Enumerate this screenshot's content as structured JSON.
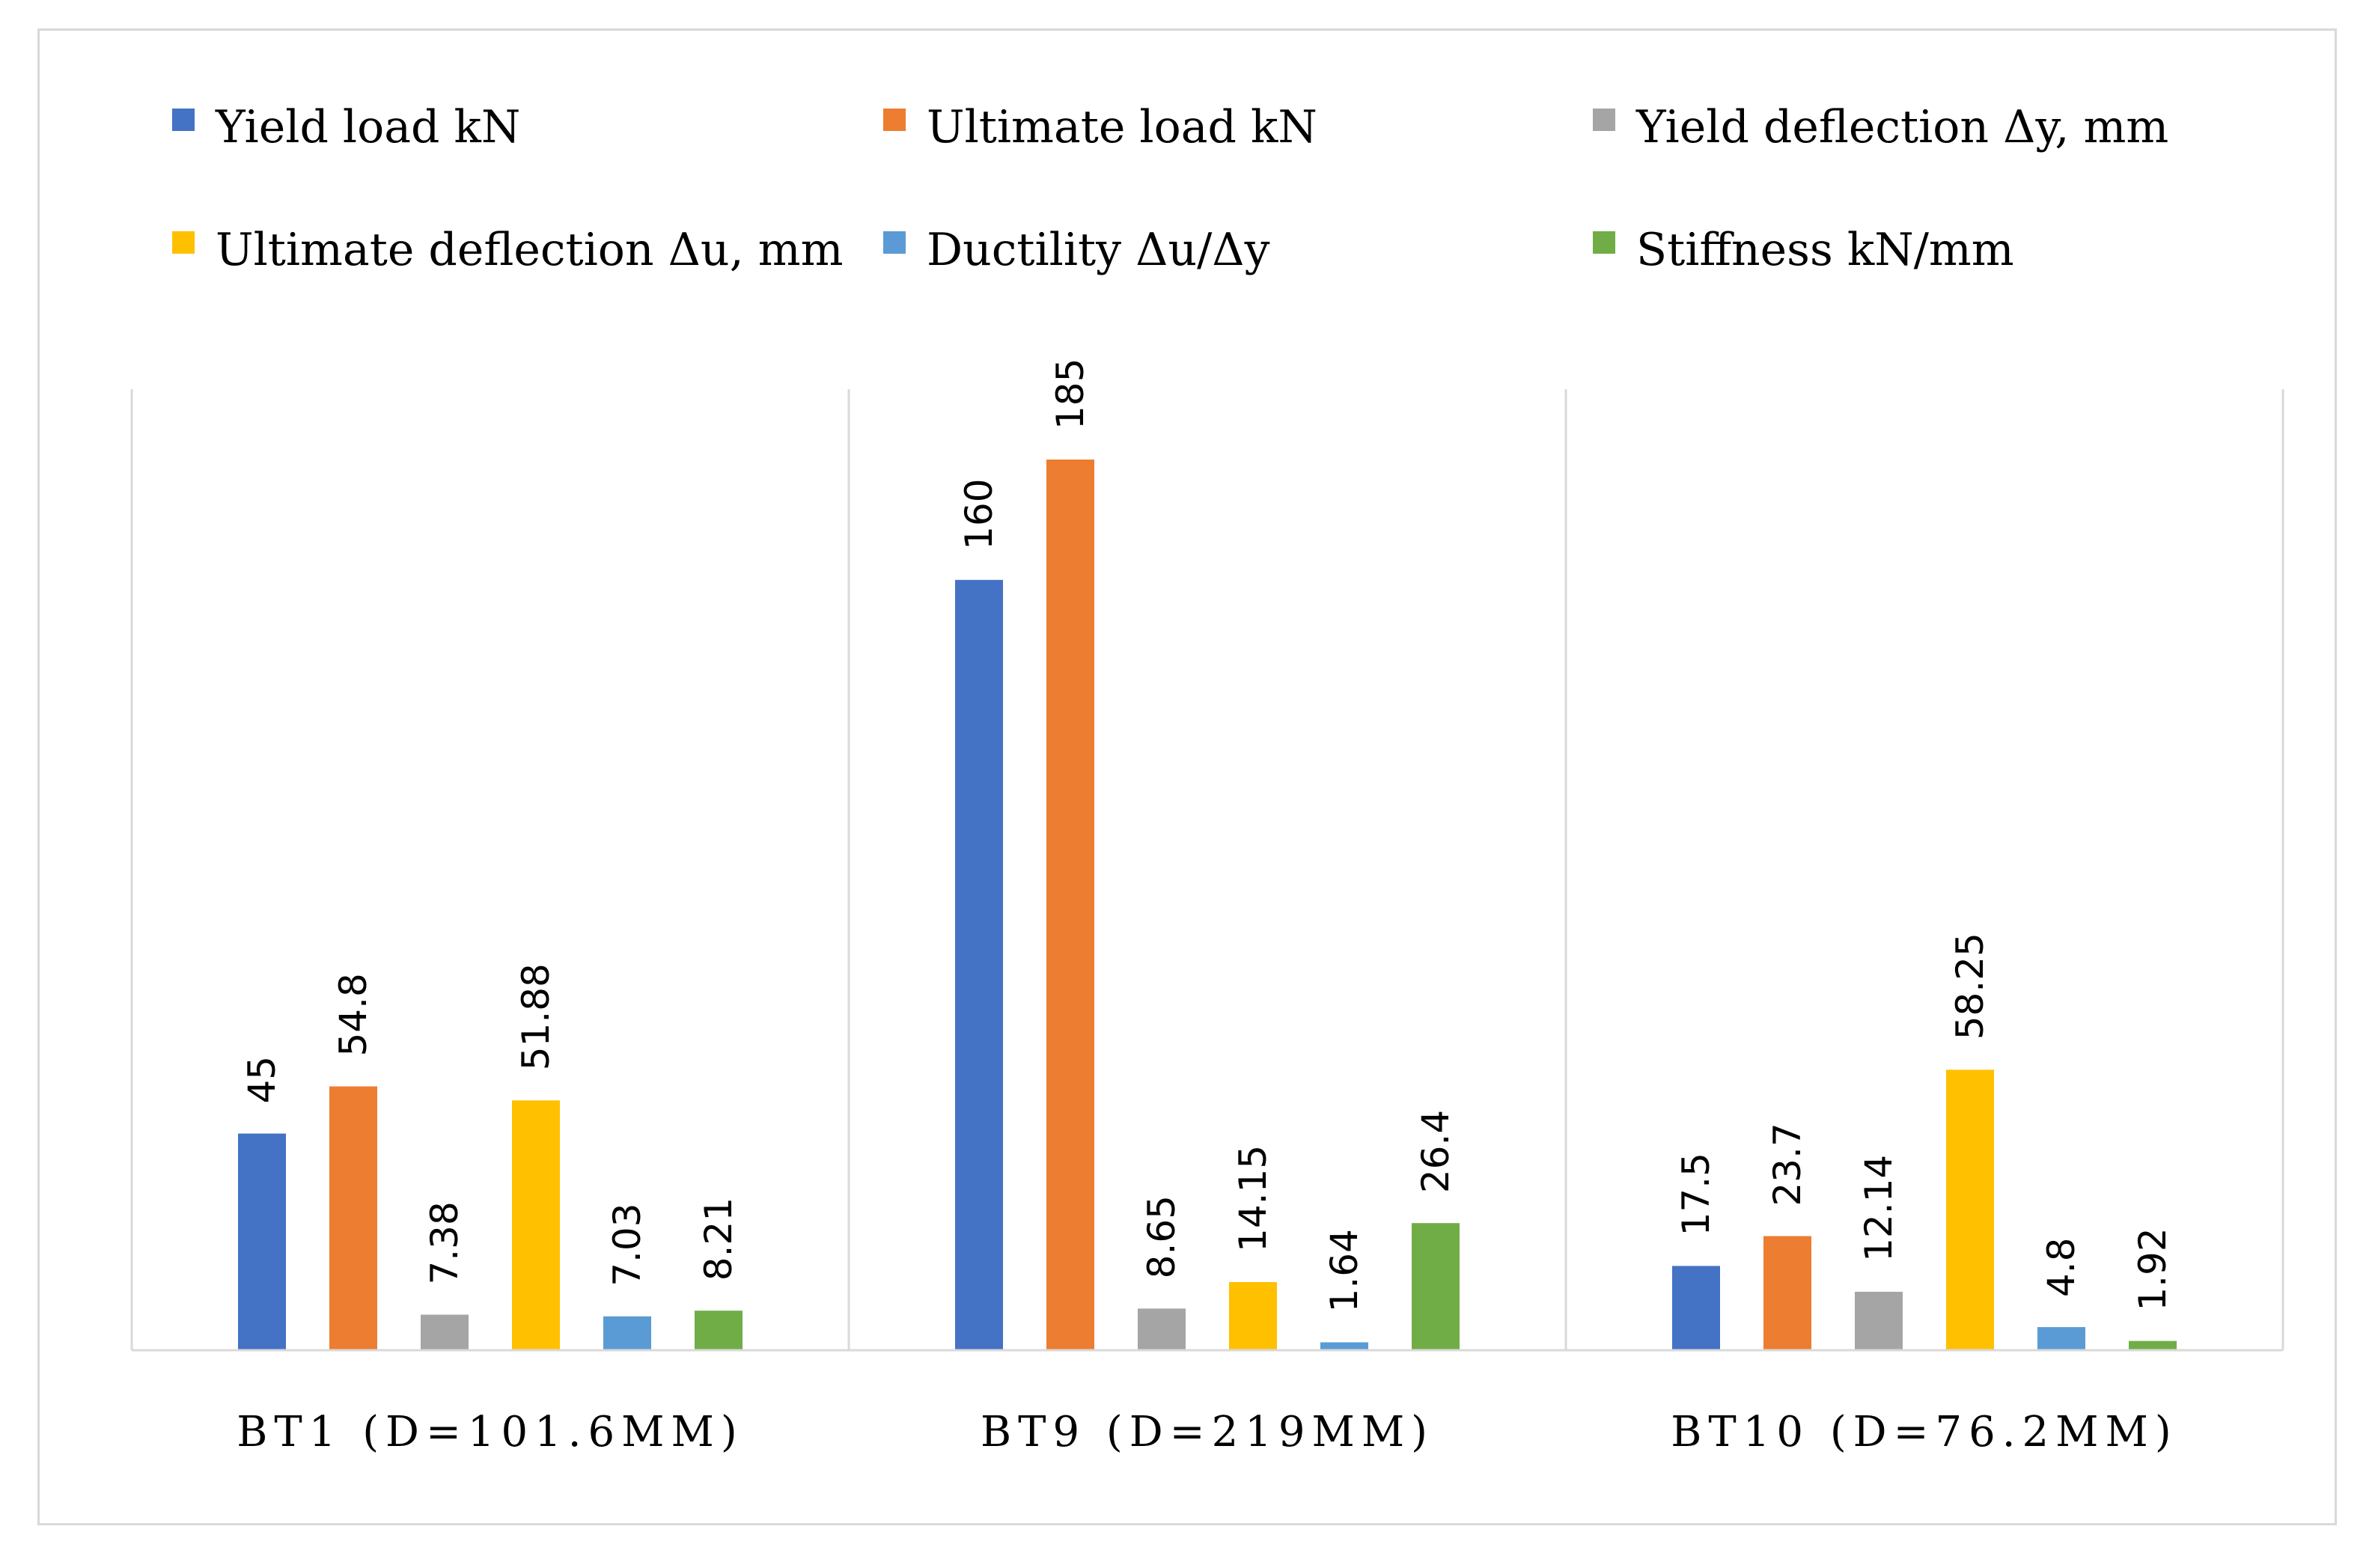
{
  "chart_data": {
    "type": "bar",
    "title": "",
    "xlabel": "",
    "ylabel": "",
    "ylim": [
      0,
      185
    ],
    "grid": false,
    "legend_position": "top",
    "categories": [
      "BT1 (D=101.6MM)",
      "BT9 (D=219MM)",
      "BT10 (D=76.2MM)"
    ],
    "series": [
      {
        "name": "Yield load kN",
        "color": "#4472c4",
        "values": [
          45,
          160,
          17.5
        ],
        "labels": [
          "45",
          "160",
          "17.5"
        ]
      },
      {
        "name": "Ultimate load kN",
        "color": "#ed7d31",
        "values": [
          54.8,
          185,
          23.7
        ],
        "labels": [
          "54.8",
          "185",
          "23.7"
        ]
      },
      {
        "name": "Yield deflection Δy, mm",
        "color": "#a5a5a5",
        "values": [
          7.38,
          8.65,
          12.14
        ],
        "labels": [
          "7.38",
          "8.65",
          "12.14"
        ]
      },
      {
        "name": "Ultimate deflection Δu, mm",
        "color": "#ffc000",
        "values": [
          51.88,
          14.15,
          58.25
        ],
        "labels": [
          "51.88",
          "14.15",
          "58.25"
        ]
      },
      {
        "name": "Ductility Δu/Δy",
        "color": "#5b9bd5",
        "values": [
          7.03,
          1.64,
          4.8
        ],
        "labels": [
          "7.03",
          "1.64",
          "4.8"
        ]
      },
      {
        "name": "Stiffness kN/mm",
        "color": "#70ad47",
        "values": [
          8.21,
          26.4,
          1.92
        ],
        "labels": [
          "8.21",
          "26.4",
          "1.92"
        ]
      }
    ]
  }
}
